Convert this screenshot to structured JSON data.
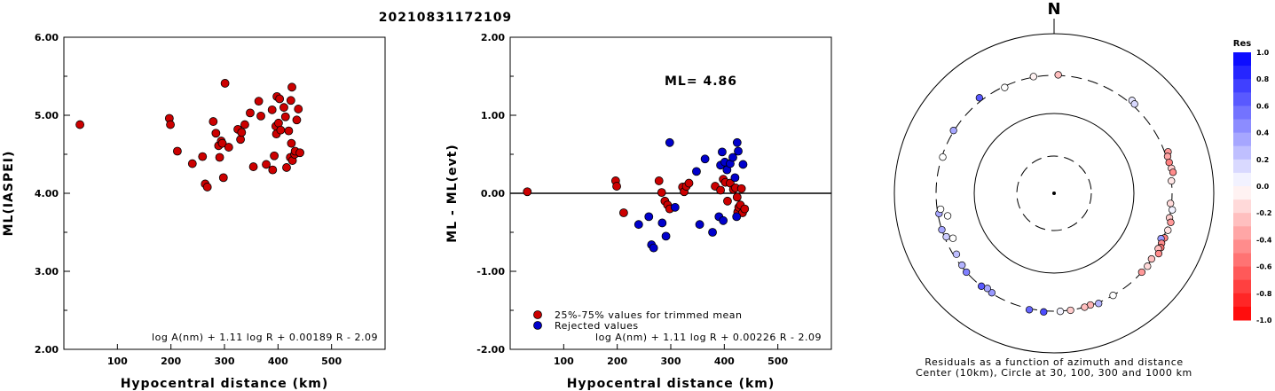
{
  "page_title": "20210831172109",
  "chart_data": [
    {
      "type": "scatter",
      "title": "",
      "xlabel": "Hypocentral distance (km)",
      "ylabel": "ML(IASPEI)",
      "xlim": [
        0,
        600
      ],
      "ylim": [
        2.0,
        6.0
      ],
      "xticks": [
        "100",
        "200",
        "300",
        "400",
        "500"
      ],
      "yticks": [
        "2.00",
        "3.00",
        "4.00",
        "5.00",
        "6.00"
      ],
      "annotation": "log A(nm) + 1.11 log R + 0.00189 R - 2.09",
      "color": "#cc0000",
      "points": [
        [
          30,
          4.88
        ],
        [
          197,
          4.96
        ],
        [
          199,
          4.88
        ],
        [
          212,
          4.54
        ],
        [
          240,
          4.38
        ],
        [
          259,
          4.47
        ],
        [
          264,
          4.12
        ],
        [
          268,
          4.08
        ],
        [
          279,
          4.92
        ],
        [
          284,
          4.77
        ],
        [
          289,
          4.61
        ],
        [
          291,
          4.46
        ],
        [
          294,
          4.67
        ],
        [
          296,
          4.64
        ],
        [
          298,
          4.2
        ],
        [
          301,
          5.41
        ],
        [
          308,
          4.59
        ],
        [
          325,
          4.82
        ],
        [
          330,
          4.69
        ],
        [
          332,
          4.78
        ],
        [
          338,
          4.88
        ],
        [
          348,
          5.03
        ],
        [
          354,
          4.34
        ],
        [
          364,
          5.18
        ],
        [
          368,
          4.99
        ],
        [
          378,
          4.37
        ],
        [
          389,
          5.07
        ],
        [
          390,
          4.3
        ],
        [
          393,
          4.48
        ],
        [
          396,
          4.86
        ],
        [
          397,
          4.76
        ],
        [
          398,
          5.24
        ],
        [
          401,
          4.9
        ],
        [
          403,
          5.21
        ],
        [
          405,
          4.81
        ],
        [
          411,
          5.1
        ],
        [
          414,
          4.98
        ],
        [
          416,
          4.33
        ],
        [
          420,
          4.8
        ],
        [
          423,
          4.46
        ],
        [
          424,
          5.19
        ],
        [
          425,
          4.64
        ],
        [
          426,
          5.36
        ],
        [
          427,
          4.42
        ],
        [
          431,
          4.5
        ],
        [
          432,
          4.54
        ],
        [
          435,
          4.94
        ],
        [
          438,
          5.08
        ],
        [
          441,
          4.52
        ]
      ]
    },
    {
      "type": "scatter",
      "title": "",
      "xlabel": "Hypocentral distance (km)",
      "ylabel": "ML - ML(evt)",
      "xlim": [
        0,
        600
      ],
      "ylim": [
        -2.0,
        2.0
      ],
      "xticks": [
        "100",
        "200",
        "300",
        "400",
        "500"
      ],
      "yticks": [
        "-2.00",
        "-1.00",
        "0.00",
        "1.00",
        "2.00"
      ],
      "ml_label": "ML= 4.86",
      "zero_line": 0,
      "annotation": "log A(nm) + 1.11 log R + 0.00226 R - 2.09",
      "legend": [
        {
          "label": "25%-75% values for trimmed mean",
          "color": "#cc0000"
        },
        {
          "label": "Rejected values",
          "color": "#0000cc"
        }
      ],
      "series": [
        {
          "name": "25%-75% values for trimmed mean",
          "color": "#cc0000",
          "points": [
            [
              32,
              0.02
            ],
            [
              197,
              0.16
            ],
            [
              199,
              0.09
            ],
            [
              212,
              -0.25
            ],
            [
              278,
              0.16
            ],
            [
              283,
              0.01
            ],
            [
              289,
              -0.1
            ],
            [
              294,
              -0.15
            ],
            [
              298,
              -0.2
            ],
            [
              322,
              0.08
            ],
            [
              325,
              0.02
            ],
            [
              329,
              0.09
            ],
            [
              334,
              0.13
            ],
            [
              383,
              0.09
            ],
            [
              393,
              0.04
            ],
            [
              398,
              0.18
            ],
            [
              402,
              0.14
            ],
            [
              406,
              -0.1
            ],
            [
              411,
              0.13
            ],
            [
              417,
              0.05
            ],
            [
              421,
              0.07
            ],
            [
              424,
              -0.05
            ],
            [
              425,
              -0.24
            ],
            [
              427,
              -0.18
            ],
            [
              430,
              -0.15
            ],
            [
              432,
              0.06
            ],
            [
              434,
              -0.25
            ],
            [
              438,
              -0.2
            ]
          ]
        },
        {
          "name": "Rejected values",
          "color": "#0000cc",
          "points": [
            [
              240,
              -0.4
            ],
            [
              259,
              -0.3
            ],
            [
              264,
              -0.66
            ],
            [
              268,
              -0.7
            ],
            [
              284,
              -0.38
            ],
            [
              291,
              -0.55
            ],
            [
              298,
              0.65
            ],
            [
              308,
              -0.18
            ],
            [
              348,
              0.28
            ],
            [
              354,
              -0.4
            ],
            [
              364,
              0.44
            ],
            [
              378,
              -0.5
            ],
            [
              390,
              -0.3
            ],
            [
              393,
              0.36
            ],
            [
              396,
              0.53
            ],
            [
              398,
              -0.35
            ],
            [
              401,
              0.4
            ],
            [
              405,
              0.3
            ],
            [
              411,
              0.38
            ],
            [
              416,
              0.46
            ],
            [
              420,
              0.2
            ],
            [
              423,
              -0.3
            ],
            [
              424,
              0.65
            ],
            [
              426,
              0.54
            ],
            [
              435,
              0.37
            ]
          ]
        }
      ]
    },
    {
      "type": "scatter",
      "subtype": "polar",
      "north_label": "N",
      "caption_line1": "Residuals as a function of azimuth and distance",
      "caption_line2": "Center (10km), Circle at 30, 100, 300 and 1000 km",
      "colorbar_title": "Res",
      "colorbar_ticks": [
        "1.0",
        "0.8",
        "0.6",
        "0.4",
        "0.2",
        "0.0",
        "-0.2",
        "-0.4",
        "-0.6",
        "-0.8",
        "-1.0"
      ],
      "distance_circles_km": [
        30,
        100,
        300,
        1000
      ],
      "points_az_dist_res": [
        [
          2,
          305,
          -0.25
        ],
        [
          -10,
          305,
          -0.05
        ],
        [
          -38,
          330,
          0.65
        ],
        [
          40,
          330,
          0.1
        ],
        [
          42,
          320,
          0.15
        ],
        [
          70,
          330,
          -0.4
        ],
        [
          72,
          312,
          -0.35
        ],
        [
          75,
          310,
          -0.5
        ],
        [
          78,
          318,
          -0.2
        ],
        [
          80,
          325,
          -0.45
        ],
        [
          84,
          300,
          -0.1
        ],
        [
          95,
          290,
          -0.15
        ],
        [
          98,
          312,
          0.05
        ],
        [
          102,
          300,
          -0.2
        ],
        [
          104,
          320,
          -0.4
        ],
        [
          108,
          315,
          -0.1
        ],
        [
          112,
          310,
          -0.5
        ],
        [
          113,
          285,
          0.4
        ],
        [
          115,
          305,
          -0.45
        ],
        [
          117,
          316,
          -0.55
        ],
        [
          118,
          300,
          -0.25
        ],
        [
          120,
          325,
          -0.45
        ],
        [
          124,
          296,
          -0.25
        ],
        [
          128,
          305,
          -0.15
        ],
        [
          132,
          300,
          -0.4
        ],
        [
          150,
          300,
          0.0
        ],
        [
          158,
          308,
          0.3
        ],
        [
          162,
          296,
          -0.3
        ],
        [
          165,
          300,
          -0.25
        ],
        [
          172,
          302,
          -0.2
        ],
        [
          177,
          303,
          0.05
        ],
        [
          185,
          310,
          0.7
        ],
        [
          192,
          310,
          0.6
        ],
        [
          212,
          295,
          0.4
        ],
        [
          215,
          285,
          0.35
        ],
        [
          218,
          300,
          0.65
        ],
        [
          228,
          300,
          0.5
        ],
        [
          232,
          290,
          0.3
        ],
        [
          238,
          276,
          0.25
        ],
        [
          248,
          285,
          0.2
        ],
        [
          252,
          300,
          0.35
        ],
        [
          260,
          290,
          0.35
        ],
        [
          258,
          230,
          0.0
        ],
        [
          262,
          272,
          0.0
        ],
        [
          246,
          243,
          0.0
        ],
        [
          288,
          292,
          0.0
        ],
        [
          302,
          305,
          0.35
        ],
        [
          335,
          290,
          0.0
        ]
      ]
    }
  ]
}
